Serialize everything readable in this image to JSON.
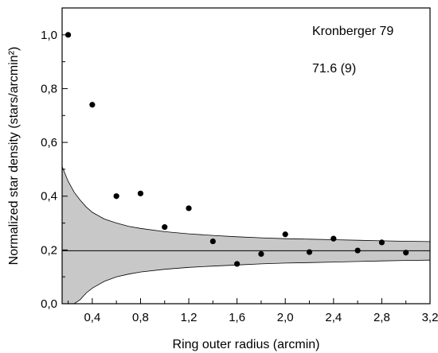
{
  "chart_data": {
    "type": "scatter",
    "title": "",
    "xlabel": "Ring outer radius (arcmin)",
    "ylabel": "Normalized star density (stars/arcmin²)",
    "xlim": [
      0.15,
      3.2
    ],
    "ylim": [
      0.0,
      1.1
    ],
    "x_ticks": [
      0.4,
      0.8,
      1.2,
      1.6,
      2.0,
      2.4,
      2.8,
      3.2
    ],
    "x_tick_labels": [
      "0,4",
      "0,8",
      "1,2",
      "1,6",
      "2,0",
      "2,4",
      "2,8",
      "3,2"
    ],
    "y_ticks": [
      0.0,
      0.2,
      0.4,
      0.6,
      0.8,
      1.0
    ],
    "y_tick_labels": [
      "0,0",
      "0,2",
      "0,4",
      "0,6",
      "0,8",
      "1,0"
    ],
    "grid": false,
    "annotations": [
      "Kronberger 79",
      "71.6 (9)"
    ],
    "points": [
      {
        "x": 0.2,
        "y": 1.0
      },
      {
        "x": 0.4,
        "y": 0.74
      },
      {
        "x": 0.6,
        "y": 0.4
      },
      {
        "x": 0.8,
        "y": 0.41
      },
      {
        "x": 1.0,
        "y": 0.285
      },
      {
        "x": 1.2,
        "y": 0.355
      },
      {
        "x": 1.4,
        "y": 0.232
      },
      {
        "x": 1.6,
        "y": 0.148
      },
      {
        "x": 1.8,
        "y": 0.185
      },
      {
        "x": 2.0,
        "y": 0.258
      },
      {
        "x": 2.2,
        "y": 0.192
      },
      {
        "x": 2.4,
        "y": 0.242
      },
      {
        "x": 2.6,
        "y": 0.198
      },
      {
        "x": 2.8,
        "y": 0.228
      },
      {
        "x": 3.0,
        "y": 0.19
      }
    ],
    "background_level": 0.197,
    "band": {
      "x": [
        0.15,
        0.2,
        0.25,
        0.3,
        0.35,
        0.4,
        0.5,
        0.6,
        0.7,
        0.8,
        1.0,
        1.2,
        1.4,
        1.6,
        1.8,
        2.0,
        2.2,
        2.4,
        2.6,
        2.8,
        3.0,
        3.2
      ],
      "upper": [
        0.51,
        0.455,
        0.415,
        0.385,
        0.36,
        0.34,
        0.315,
        0.3,
        0.288,
        0.28,
        0.268,
        0.26,
        0.254,
        0.249,
        0.245,
        0.242,
        0.24,
        0.238,
        0.236,
        0.234,
        0.232,
        0.231
      ],
      "lower": [
        0.0,
        0.0,
        0.0,
        0.015,
        0.04,
        0.058,
        0.083,
        0.1,
        0.11,
        0.118,
        0.128,
        0.135,
        0.14,
        0.144,
        0.148,
        0.151,
        0.153,
        0.155,
        0.157,
        0.159,
        0.161,
        0.162
      ]
    },
    "colors": {
      "band": "#c8c8c8",
      "points": "#000000",
      "axis": "#000000"
    }
  }
}
